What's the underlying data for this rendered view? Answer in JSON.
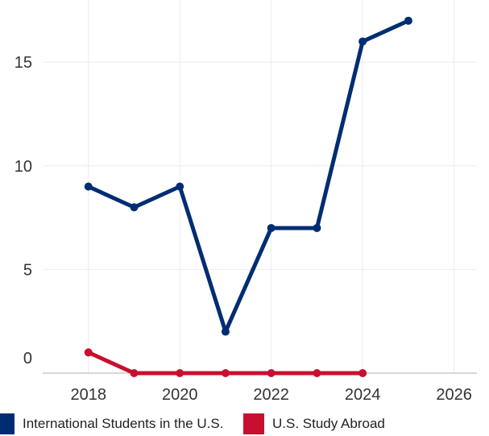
{
  "chart_data": {
    "type": "line",
    "x": [
      2018,
      2019,
      2020,
      2021,
      2022,
      2023,
      2024,
      2025
    ],
    "series": [
      {
        "name": "International Students in the U.S.",
        "color": "#002d72",
        "x": [
          2018,
          2019,
          2020,
          2021,
          2022,
          2023,
          2024,
          2025
        ],
        "values": [
          9,
          8,
          9,
          2,
          7,
          7,
          16,
          17
        ]
      },
      {
        "name": "U.S. Study Abroad",
        "color": "#c8102e",
        "x": [
          2018,
          2019,
          2020,
          2021,
          2022,
          2023,
          2024
        ],
        "values": [
          1,
          0,
          0,
          0,
          0,
          0,
          0
        ]
      }
    ],
    "xticks": [
      2018,
      2020,
      2022,
      2024,
      2026
    ],
    "yticks": [
      0,
      5,
      10,
      15
    ],
    "xlim": [
      2017,
      2026.5
    ],
    "ylim": [
      0,
      18
    ],
    "grid": true,
    "legend_position": "bottom"
  }
}
